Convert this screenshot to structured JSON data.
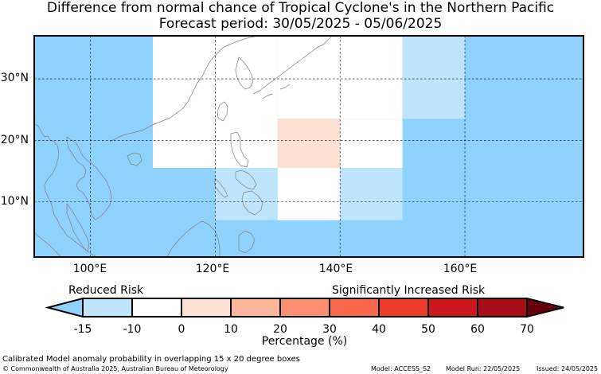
{
  "title": {
    "line1": "Difference from normal chance of Tropical Cyclone's in the Northern Pacific",
    "line2": "Forecast period: 30/05/2025 - 05/06/2025"
  },
  "map": {
    "lon_range": [
      91,
      179
    ],
    "lat_range": [
      1,
      37
    ],
    "lat_ticks": [
      {
        "value": 30,
        "label": "30°N"
      },
      {
        "value": 20,
        "label": "20°N"
      },
      {
        "value": 10,
        "label": "10°N"
      }
    ],
    "lon_ticks": [
      {
        "value": 100,
        "label": "100°E"
      },
      {
        "value": 120,
        "label": "120°E"
      },
      {
        "value": 140,
        "label": "140°E"
      },
      {
        "value": 160,
        "label": "160°E"
      }
    ],
    "gridlines": true,
    "ocean_default_color": "#8fd2fe",
    "cells": [
      {
        "lon": [
          110,
          130
        ],
        "lat": [
          15.5,
          37
        ],
        "color": "#ffffff"
      },
      {
        "lon": [
          130,
          150
        ],
        "lat": [
          23.5,
          37
        ],
        "color": "#ffffff"
      },
      {
        "lon": [
          130,
          140
        ],
        "lat": [
          15.5,
          23.5
        ],
        "color": "#fee1d4"
      },
      {
        "lon": [
          140,
          150
        ],
        "lat": [
          15.5,
          23.5
        ],
        "color": "#ffffff"
      },
      {
        "lon": [
          120,
          130
        ],
        "lat": [
          7,
          15.5
        ],
        "color": "#bfe5fe"
      },
      {
        "lon": [
          130,
          140
        ],
        "lat": [
          7,
          15.5
        ],
        "color": "#ffffff"
      },
      {
        "lon": [
          140,
          150
        ],
        "lat": [
          7,
          15.5
        ],
        "color": "#bfe5fe"
      },
      {
        "lon": [
          150,
          160
        ],
        "lat": [
          23.5,
          37
        ],
        "color": "#bfe5fe"
      }
    ]
  },
  "colorbar": {
    "label_left": "Reduced Risk",
    "label_right": "Significantly Increased Risk",
    "xlabel": "Percentage (%)",
    "ticks": [
      "-15",
      "-10",
      "0",
      "10",
      "20",
      "30",
      "40",
      "50",
      "60",
      "70"
    ],
    "colors": [
      "#bfe5fe",
      "#ffffff",
      "#fee1d4",
      "#fdb59b",
      "#fc8f6f",
      "#f9684c",
      "#ef3b2c",
      "#cb181d",
      "#a50f15"
    ],
    "extend_low": "#8fd2fe",
    "extend_high": "#67000d"
  },
  "footer": {
    "note": "Calibrated Model anomaly probability in overlapping 15 x 20 degree boxes",
    "copyright": "© Commonwealth of Australia 2025, Australian Bureau of Meteorology",
    "model": "Model: ACCESS_S2",
    "model_run": "Model Run: 22/05/2025",
    "issued": "Issued: 24/05/2025"
  }
}
